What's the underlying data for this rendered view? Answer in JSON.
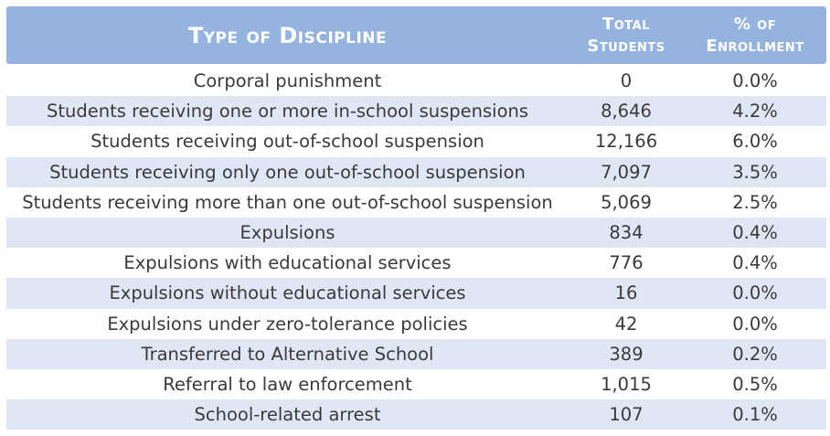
{
  "chart_data": {
    "type": "table",
    "columns": {
      "type": "Type of Discipline",
      "total_line1": "Total",
      "total_line2": "Students",
      "pct_line1": "% of",
      "pct_line2": "Enrollment"
    },
    "rows": [
      {
        "type": "Corporal punishment",
        "total": "0",
        "pct": "0.0%"
      },
      {
        "type": "Students receiving one or more in-school suspensions",
        "total": "8,646",
        "pct": "4.2%"
      },
      {
        "type": "Students receiving out-of-school suspension",
        "total": "12,166",
        "pct": "6.0%"
      },
      {
        "type": "Students receiving only one out-of-school suspension",
        "total": "7,097",
        "pct": "3.5%"
      },
      {
        "type": "Students receiving more than one out-of-school suspension",
        "total": "5,069",
        "pct": "2.5%"
      },
      {
        "type": "Expulsions",
        "total": "834",
        "pct": "0.4%"
      },
      {
        "type": "Expulsions with educational services",
        "total": "776",
        "pct": "0.4%"
      },
      {
        "type": "Expulsions without educational services",
        "total": "16",
        "pct": "0.0%"
      },
      {
        "type": "Expulsions under zero-tolerance policies",
        "total": "42",
        "pct": "0.0%"
      },
      {
        "type": "Transferred to Alternative School",
        "total": "389",
        "pct": "0.2%"
      },
      {
        "type": "Referral to law enforcement",
        "total": "1,015",
        "pct": "0.5%"
      },
      {
        "type": "School-related arrest",
        "total": "107",
        "pct": "0.1%"
      }
    ]
  },
  "colors": {
    "header_bg": "#95b3df",
    "stripe_bg": "#dfe6f4",
    "text": "#3a3a3a"
  }
}
